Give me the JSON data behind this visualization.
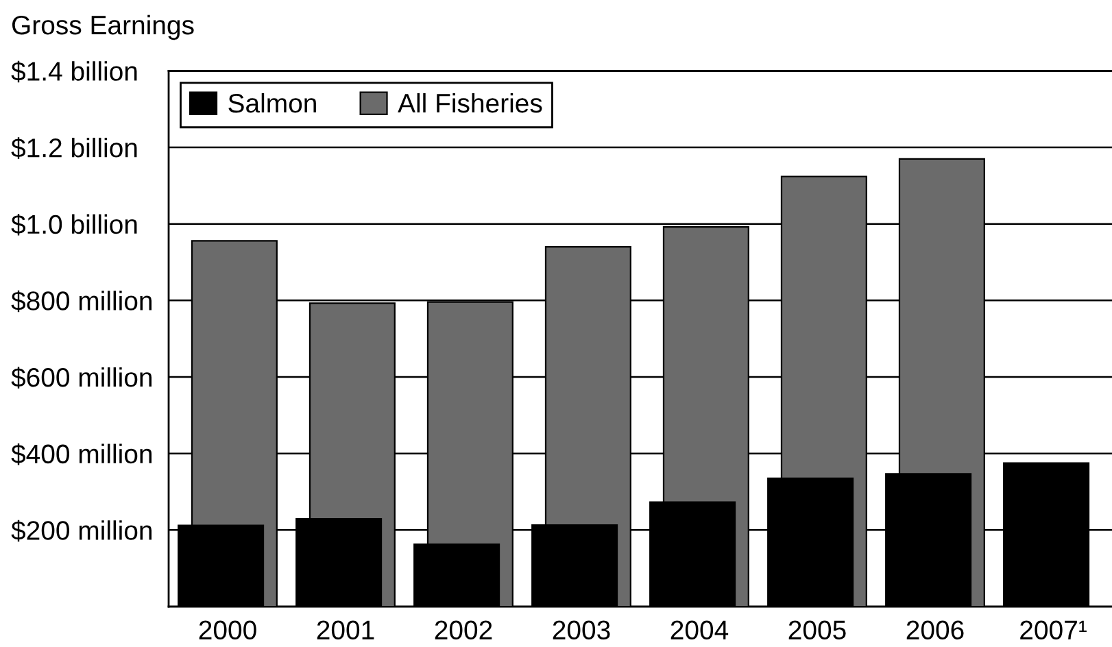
{
  "chart_data": {
    "type": "bar",
    "ylabel": "Gross Earnings",
    "categories": [
      "2000",
      "2001",
      "2002",
      "2003",
      "2004",
      "2005",
      "2006",
      "2007¹"
    ],
    "series": [
      {
        "name": "Salmon",
        "color": "#000000",
        "values": [
          212000000,
          229000000,
          163000000,
          213000000,
          273000000,
          335000000,
          347000000,
          375000000
        ]
      },
      {
        "name": "All Fisheries",
        "color": "#6b6b6b",
        "values": [
          956000000,
          793000000,
          796000000,
          940000000,
          992000000,
          1124000000,
          1170000000,
          null
        ]
      }
    ],
    "ylim": [
      0,
      1400000000
    ],
    "yticks": [
      {
        "value": 200000000,
        "label": "$200 million"
      },
      {
        "value": 400000000,
        "label": "$400 million"
      },
      {
        "value": 600000000,
        "label": "$600 million"
      },
      {
        "value": 800000000,
        "label": "$800 million"
      },
      {
        "value": 1000000000,
        "label": "$1.0 billion"
      },
      {
        "value": 1200000000,
        "label": "$1.2 billion"
      },
      {
        "value": 1400000000,
        "label": "$1.4 billion"
      }
    ],
    "grid": "y",
    "legend": "top left"
  }
}
